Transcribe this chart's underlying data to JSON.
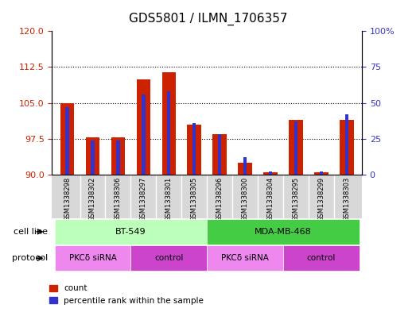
{
  "title": "GDS5801 / ILMN_1706357",
  "samples": [
    "GSM1338298",
    "GSM1338302",
    "GSM1338306",
    "GSM1338297",
    "GSM1338301",
    "GSM1338305",
    "GSM1338296",
    "GSM1338300",
    "GSM1338304",
    "GSM1338295",
    "GSM1338299",
    "GSM1338303"
  ],
  "count_values": [
    105.0,
    97.8,
    97.8,
    110.0,
    111.5,
    100.5,
    98.5,
    92.5,
    90.5,
    101.5,
    90.5,
    101.5
  ],
  "percentile_values": [
    47,
    24,
    24,
    56,
    58,
    36,
    28,
    12,
    2,
    37,
    2,
    42
  ],
  "ylim_left": [
    90,
    120
  ],
  "ylim_right": [
    0,
    100
  ],
  "yticks_left": [
    90,
    97.5,
    105,
    112.5,
    120
  ],
  "yticks_right": [
    0,
    25,
    50,
    75,
    100
  ],
  "bar_color_red": "#cc2200",
  "bar_color_blue": "#3333cc",
  "cell_lines": [
    {
      "label": "BT-549",
      "start": 0,
      "end": 6,
      "color": "#bbffbb"
    },
    {
      "label": "MDA-MB-468",
      "start": 6,
      "end": 12,
      "color": "#44cc44"
    }
  ],
  "protocols": [
    {
      "label": "PKCδ siRNA",
      "start": 0,
      "end": 3,
      "color": "#ee88ee"
    },
    {
      "label": "control",
      "start": 3,
      "end": 6,
      "color": "#cc44cc"
    },
    {
      "label": "PKCδ siRNA",
      "start": 6,
      "end": 9,
      "color": "#ee88ee"
    },
    {
      "label": "control",
      "start": 9,
      "end": 12,
      "color": "#cc44cc"
    }
  ],
  "xlabel_cell_line": "cell line",
  "xlabel_protocol": "protocol",
  "legend_count": "count",
  "legend_percentile": "percentile rank within the sample",
  "sample_bg": "#d8d8d8",
  "plot_bg": "#ffffff"
}
